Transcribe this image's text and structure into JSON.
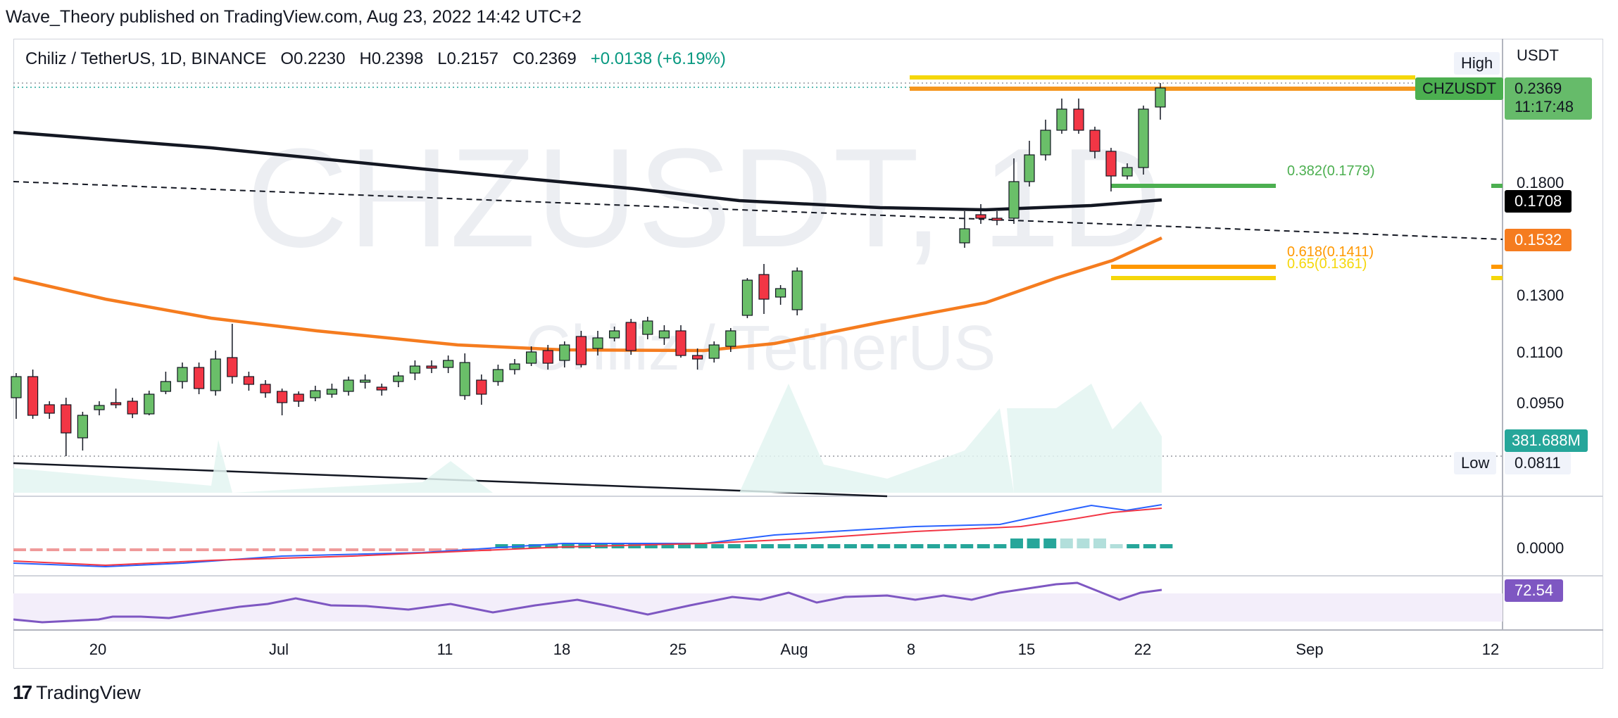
{
  "publisher_line": "Wave_Theory published on TradingView.com, Aug 23, 2022 14:42 UTC+2",
  "symbol": {
    "title": "Chiliz / TetherUS, 1D, BINANCE",
    "open": "O0.2230",
    "high": "H0.2398",
    "low": "L0.2157",
    "close": "C0.2369",
    "change": "+0.0138 (+6.19%)"
  },
  "watermark": {
    "ticker": "CHZUSDT, 1D",
    "name": "Chiliz / TetherUS"
  },
  "price_axis": {
    "currency": "USDT",
    "ticks": [
      "0.1800",
      "0.1300",
      "0.1100",
      "0.0950",
      "0.0000"
    ]
  },
  "tags": {
    "high_label": "High",
    "low_label": "Low",
    "low_value": "0.0811",
    "symbol_tag": "CHZUSDT",
    "last_price": "0.2369",
    "countdown": "11:17:48",
    "ma_black": "0.1708",
    "ma_orange": "0.1532",
    "volume": "381.688M",
    "rsi": "72.54"
  },
  "fib_levels": [
    {
      "label": "0.382(0.1779)",
      "color": "#4caf50"
    },
    {
      "label": "0.618(0.1411)",
      "color": "#ff9800"
    },
    {
      "label": "0.65(0.1361)",
      "color": "#f5d70a"
    }
  ],
  "time_axis": [
    "20",
    "Jul",
    "11",
    "18",
    "25",
    "Aug",
    "8",
    "15",
    "22",
    "Sep",
    "12"
  ],
  "footer": {
    "brand": "TradingView",
    "logo_mark": "17"
  },
  "colors": {
    "up": "#26a69a",
    "candle_up_fill": "#6abf69",
    "candle_down_fill": "#f23645",
    "ma_orange": "#f57c1f",
    "rsi_line": "#7e57c2",
    "macd_line": "#2962ff",
    "signal_line": "#f23645"
  },
  "chart_data": {
    "type": "candlestick",
    "symbol": "CHZUSDT",
    "interval": "1D",
    "last_price": 0.2369,
    "resistance_levels": [
      0.2369,
      0.2398
    ],
    "fib_retracements": {
      "0.382": 0.1779,
      "0.618": 0.1411,
      "0.65": 0.1361
    },
    "ma_values": {
      "black": 0.1708,
      "orange": 0.1532
    },
    "volume_last": "381.688M",
    "rsi_last": 72.54
  }
}
